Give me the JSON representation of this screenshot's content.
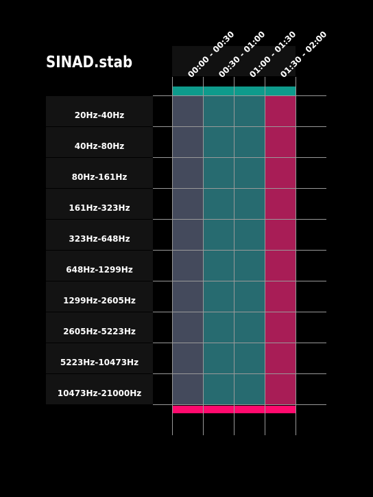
{
  "chart_data": {
    "type": "heatmap",
    "title": "SINAD.stab",
    "columns": [
      "00:00 - 00:30",
      "00:30 - 01:00",
      "01:00 - 01:30",
      "01:30 - 02:00"
    ],
    "rows": [
      "20Hz-40Hz",
      "40Hz-80Hz",
      "80Hz-161Hz",
      "161Hz-323Hz",
      "323Hz-648Hz",
      "648Hz-1299Hz",
      "1299Hz-2605Hz",
      "2605Hz-5223Hz",
      "5223Hz-10473Hz",
      "10473Hz-21000Hz"
    ],
    "column_colors": [
      "#444a5c",
      "#276b70",
      "#276b70",
      "#a81d56"
    ],
    "top_bar_color": "#0e9b8c",
    "bottom_bar_color": "#ff0a6e",
    "grid": true
  }
}
